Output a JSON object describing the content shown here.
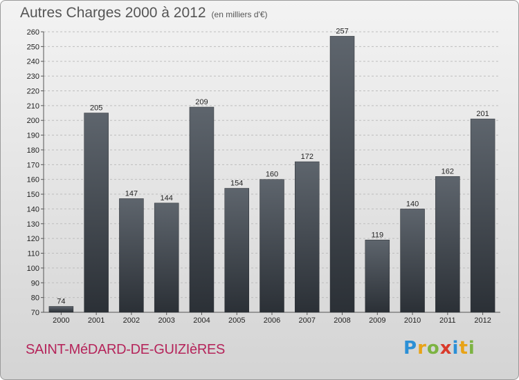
{
  "header": {
    "title": "Autres Charges 2000 à 2012",
    "subtitle": "(en milliers d'€)"
  },
  "footer": {
    "city": "SAINT-MéDARD-DE-GUIZIèRES",
    "logo": {
      "letters": [
        "P",
        "r",
        "o",
        "x",
        "i",
        "t",
        "i"
      ],
      "colors": [
        "#2b8fd6",
        "#e8a317",
        "#7cb342",
        "#d93a2b",
        "#2b8fd6",
        "#e8a317",
        "#7cb342"
      ]
    }
  },
  "chart_data": {
    "type": "bar",
    "categories": [
      "2000",
      "2001",
      "2002",
      "2003",
      "2004",
      "2005",
      "2006",
      "2007",
      "2008",
      "2009",
      "2010",
      "2011",
      "2012"
    ],
    "values": [
      74,
      205,
      147,
      144,
      209,
      154,
      160,
      172,
      257,
      119,
      140,
      162,
      201
    ],
    "ylim": [
      70,
      260
    ],
    "ytick_step": 10,
    "grid": true,
    "bar_colors": {
      "top": "#5e656d",
      "bottom": "#2b3036"
    }
  }
}
